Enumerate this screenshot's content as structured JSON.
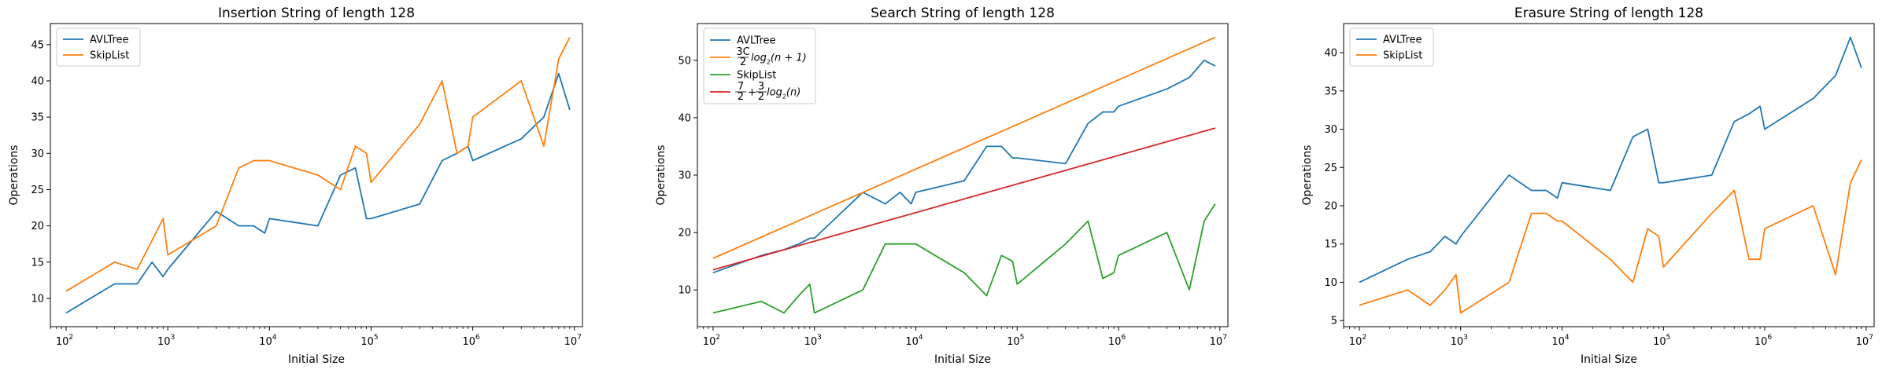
{
  "chart_data": [
    {
      "type": "line",
      "title": "Insertion String of length 128",
      "xlabel": "Initial Size",
      "ylabel": "Operations",
      "xscale": "log",
      "xlim": [
        70,
        12000000
      ],
      "ylim": [
        6.1,
        47.9
      ],
      "yticks": [
        10,
        15,
        20,
        25,
        30,
        35,
        40,
        45
      ],
      "xticks": [
        {
          "value": 100,
          "base": "10",
          "exp": "2"
        },
        {
          "value": 1000,
          "base": "10",
          "exp": "3"
        },
        {
          "value": 10000,
          "base": "10",
          "exp": "4"
        },
        {
          "value": 100000,
          "base": "10",
          "exp": "5"
        },
        {
          "value": 1000000,
          "base": "10",
          "exp": "6"
        },
        {
          "value": 10000000,
          "base": "10",
          "exp": "7"
        }
      ],
      "legend_position": "top-left",
      "grid": false,
      "series": [
        {
          "name": "AVLTree",
          "color": "#1f77b4",
          "x": [
            100,
            300,
            500,
            700,
            900,
            1000,
            3000,
            5000,
            7000,
            9000,
            10000,
            30000,
            50000,
            70000,
            90000,
            100000,
            300000,
            500000,
            700000,
            900000,
            1000000,
            3000000,
            5000000,
            7000000,
            9000000
          ],
          "y": [
            8,
            12,
            12,
            15,
            13,
            14,
            22,
            20,
            20,
            19,
            21,
            20,
            27,
            28,
            21,
            21,
            23,
            29,
            30,
            31,
            29,
            32,
            35,
            41,
            36
          ]
        },
        {
          "name": "SkipList",
          "color": "#ff7f0e",
          "x": [
            100,
            300,
            500,
            700,
            900,
            1000,
            3000,
            5000,
            7000,
            9000,
            10000,
            30000,
            50000,
            70000,
            90000,
            100000,
            300000,
            500000,
            700000,
            900000,
            1000000,
            3000000,
            5000000,
            7000000,
            9000000
          ],
          "y": [
            11,
            15,
            14,
            18,
            21,
            16,
            20,
            28,
            29,
            29,
            29,
            27,
            25,
            31,
            30,
            26,
            34,
            40,
            30,
            31,
            35,
            40,
            31,
            43,
            46
          ]
        }
      ]
    },
    {
      "type": "line",
      "title": "Search String of length 128",
      "xlabel": "Initial Size",
      "ylabel": "Operations",
      "xscale": "log",
      "xlim": [
        70,
        12000000
      ],
      "ylim": [
        3.6,
        56.4
      ],
      "yticks": [
        10,
        20,
        30,
        40,
        50
      ],
      "xticks": [
        {
          "value": 100,
          "base": "10",
          "exp": "2"
        },
        {
          "value": 1000,
          "base": "10",
          "exp": "3"
        },
        {
          "value": 10000,
          "base": "10",
          "exp": "4"
        },
        {
          "value": 100000,
          "base": "10",
          "exp": "5"
        },
        {
          "value": 1000000,
          "base": "10",
          "exp": "6"
        },
        {
          "value": 10000000,
          "base": "10",
          "exp": "7"
        }
      ],
      "legend_position": "top-left",
      "grid": false,
      "series": [
        {
          "name": "AVLTree",
          "color": "#1f77b4",
          "x": [
            100,
            300,
            500,
            700,
            900,
            1000,
            3000,
            5000,
            7000,
            9000,
            10000,
            30000,
            50000,
            70000,
            90000,
            100000,
            300000,
            500000,
            700000,
            900000,
            1000000,
            3000000,
            5000000,
            7000000,
            9000000
          ],
          "y": [
            13,
            16,
            17,
            18,
            19,
            19,
            27,
            25,
            27,
            25,
            27,
            29,
            35,
            35,
            33,
            33,
            32,
            39,
            41,
            41,
            42,
            45,
            47,
            50,
            49
          ]
        },
        {
          "name": "3C/2 log2(n+1)",
          "color": "#ff7f0e",
          "legend_parts": {
            "frac_num": "3C",
            "frac_den": "2",
            "func": "log",
            "sub": "2",
            "arg": "(n + 1)"
          },
          "x": [
            100,
            9000000
          ],
          "y": [
            15.5,
            54
          ]
        },
        {
          "name": "SkipList",
          "color": "#2ca02c",
          "x": [
            100,
            300,
            500,
            700,
            900,
            1000,
            3000,
            5000,
            7000,
            9000,
            10000,
            30000,
            50000,
            70000,
            90000,
            100000,
            300000,
            500000,
            700000,
            900000,
            1000000,
            3000000,
            5000000,
            7000000,
            9000000
          ],
          "y": [
            6,
            8,
            6,
            9,
            11,
            6,
            10,
            18,
            18,
            18,
            18,
            13,
            9,
            16,
            15,
            11,
            18,
            22,
            12,
            13,
            16,
            20,
            10,
            22,
            25
          ]
        },
        {
          "name": "7/2 + 3/2 log2(n)",
          "color": "#d62728",
          "legend_parts": {
            "frac1_num": "7",
            "frac1_den": "2",
            "plus": "+",
            "frac2_num": "3",
            "frac2_den": "2",
            "func": "log",
            "sub": "2",
            "arg": "(n)"
          },
          "x": [
            100,
            9000000
          ],
          "y": [
            13.5,
            38.2
          ]
        }
      ]
    },
    {
      "type": "line",
      "title": "Erasure String of length 128",
      "xlabel": "Initial Size",
      "ylabel": "Operations",
      "xscale": "log",
      "xlim": [
        70,
        12000000
      ],
      "ylim": [
        4.2,
        43.8
      ],
      "yticks": [
        5,
        10,
        15,
        20,
        25,
        30,
        35,
        40
      ],
      "xticks": [
        {
          "value": 100,
          "base": "10",
          "exp": "2"
        },
        {
          "value": 1000,
          "base": "10",
          "exp": "3"
        },
        {
          "value": 10000,
          "base": "10",
          "exp": "4"
        },
        {
          "value": 100000,
          "base": "10",
          "exp": "5"
        },
        {
          "value": 1000000,
          "base": "10",
          "exp": "6"
        },
        {
          "value": 10000000,
          "base": "10",
          "exp": "7"
        }
      ],
      "legend_position": "top-left",
      "grid": false,
      "series": [
        {
          "name": "AVLTree",
          "color": "#1f77b4",
          "x": [
            100,
            300,
            500,
            700,
            900,
            1000,
            3000,
            5000,
            7000,
            9000,
            10000,
            30000,
            50000,
            70000,
            90000,
            100000,
            300000,
            500000,
            700000,
            900000,
            1000000,
            3000000,
            5000000,
            7000000,
            9000000
          ],
          "y": [
            10,
            13,
            14,
            16,
            15,
            16,
            24,
            22,
            22,
            21,
            23,
            22,
            29,
            30,
            23,
            23,
            24,
            31,
            32,
            33,
            30,
            34,
            37,
            42,
            38
          ]
        },
        {
          "name": "SkipList",
          "color": "#ff7f0e",
          "x": [
            100,
            300,
            500,
            700,
            900,
            1000,
            3000,
            5000,
            7000,
            9000,
            10000,
            30000,
            50000,
            70000,
            90000,
            100000,
            300000,
            500000,
            700000,
            900000,
            1000000,
            3000000,
            5000000,
            7000000,
            9000000
          ],
          "y": [
            7,
            9,
            7,
            9,
            11,
            6,
            10,
            19,
            19,
            18,
            18,
            13,
            10,
            17,
            16,
            12,
            19,
            22,
            13,
            13,
            17,
            20,
            11,
            23,
            26
          ]
        }
      ]
    }
  ]
}
